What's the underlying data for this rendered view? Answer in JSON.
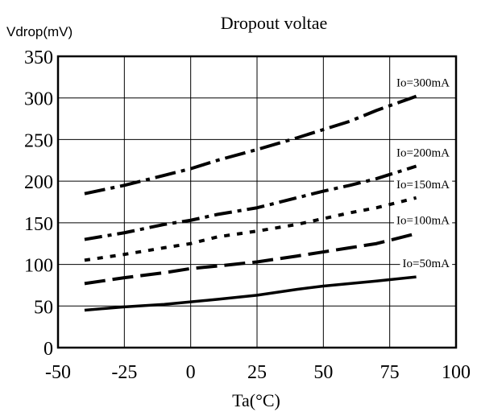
{
  "chart_data": {
    "type": "line",
    "title": "Dropout voltae",
    "ylabel": "Vdrop(mV)",
    "xlabel": "Ta(°C)",
    "xlim": [
      -50,
      100
    ],
    "ylim": [
      0,
      350
    ],
    "xticks": [
      -50,
      -25,
      0,
      25,
      50,
      75,
      100
    ],
    "yticks": [
      0,
      50,
      100,
      150,
      200,
      250,
      300,
      350
    ],
    "grid": true,
    "series": [
      {
        "name": "Io=300mA",
        "dash": "26,7,5,7",
        "x": [
          -40,
          -25,
          -10,
          0,
          10,
          25,
          40,
          50,
          60,
          70,
          85
        ],
        "y": [
          185,
          195,
          207,
          215,
          225,
          238,
          252,
          262,
          272,
          285,
          302
        ]
      },
      {
        "name": "Io=200mA",
        "dash": "22,7,5,7",
        "x": [
          -40,
          -25,
          -10,
          0,
          10,
          25,
          40,
          50,
          60,
          70,
          85
        ],
        "y": [
          130,
          138,
          148,
          153,
          160,
          168,
          180,
          188,
          195,
          203,
          218
        ]
      },
      {
        "name": "Io=150mA",
        "dash": "7,9",
        "x": [
          -40,
          -25,
          -10,
          0,
          10,
          25,
          40,
          50,
          60,
          70,
          85
        ],
        "y": [
          105,
          112,
          120,
          125,
          133,
          140,
          148,
          155,
          162,
          168,
          180
        ]
      },
      {
        "name": "Io=100mA",
        "dash": "26,9",
        "x": [
          -40,
          -25,
          -10,
          0,
          10,
          25,
          40,
          50,
          60,
          70,
          85
        ],
        "y": [
          77,
          84,
          90,
          95,
          98,
          103,
          110,
          115,
          120,
          125,
          137
        ]
      },
      {
        "name": "Io=50mA",
        "dash": "",
        "x": [
          -40,
          -25,
          -10,
          0,
          10,
          25,
          40,
          50,
          60,
          70,
          85
        ],
        "y": [
          45,
          49,
          52,
          55,
          58,
          63,
          70,
          74,
          77,
          80,
          85
        ]
      }
    ]
  }
}
